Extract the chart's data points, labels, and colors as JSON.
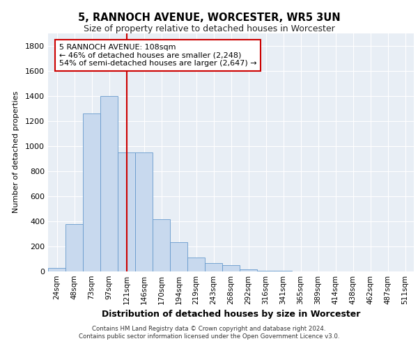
{
  "title1": "5, RANNOCH AVENUE, WORCESTER, WR5 3UN",
  "title2": "Size of property relative to detached houses in Worcester",
  "xlabel": "Distribution of detached houses by size in Worcester",
  "ylabel": "Number of detached properties",
  "categories": [
    "24sqm",
    "48sqm",
    "73sqm",
    "97sqm",
    "121sqm",
    "146sqm",
    "170sqm",
    "194sqm",
    "219sqm",
    "243sqm",
    "268sqm",
    "292sqm",
    "316sqm",
    "341sqm",
    "365sqm",
    "389sqm",
    "414sqm",
    "438sqm",
    "462sqm",
    "487sqm",
    "511sqm"
  ],
  "values": [
    25,
    380,
    1260,
    1400,
    950,
    950,
    415,
    235,
    110,
    65,
    50,
    15,
    8,
    4,
    2,
    2,
    1,
    0,
    0,
    0,
    0
  ],
  "bar_color": "#c8d9ee",
  "bar_edgecolor": "#6699cc",
  "vline_x": 4.0,
  "vline_color": "#cc0000",
  "annotation_text": "5 RANNOCH AVENUE: 108sqm\n← 46% of detached houses are smaller (2,248)\n54% of semi-detached houses are larger (2,647) →",
  "annotation_box_color": "#ffffff",
  "annotation_box_edgecolor": "#cc0000",
  "ylim": [
    0,
    1900
  ],
  "yticks": [
    0,
    200,
    400,
    600,
    800,
    1000,
    1200,
    1400,
    1600,
    1800
  ],
  "footer1": "Contains HM Land Registry data © Crown copyright and database right 2024.",
  "footer2": "Contains public sector information licensed under the Open Government Licence v3.0.",
  "background_color": "#ffffff",
  "plot_bg_color": "#e8eef5",
  "grid_color": "#ffffff"
}
